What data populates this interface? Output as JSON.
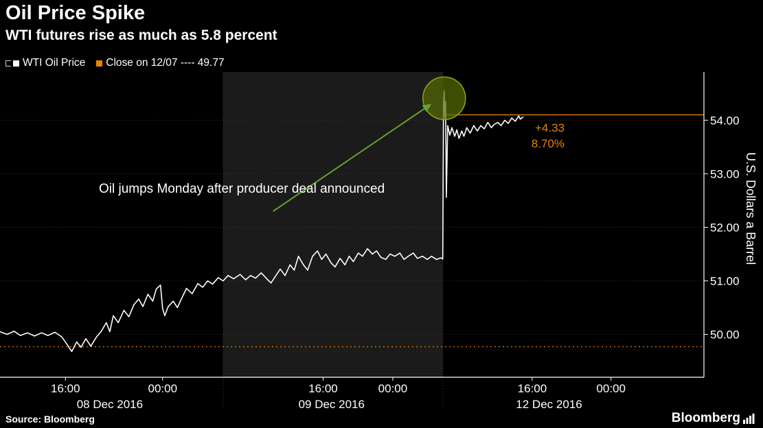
{
  "header": {
    "title": "Oil Price Spike",
    "subtitle": "WTI futures rise as much as 5.8 percent"
  },
  "legend": {
    "series1_label": "WTI Oil Price",
    "series2_label": "Close on 12/07 ---- 49.77"
  },
  "annotation": {
    "text": "Oil jumps Monday after producer deal announced",
    "change_abs": "+4.33",
    "change_pct": "8.70%"
  },
  "footer": {
    "source": "Source: Bloomberg",
    "logo_text": "Bloomberg"
  },
  "colors": {
    "background": "#000000",
    "line": "#ffffff",
    "orange": "#e8820a",
    "green": "#67a22f",
    "grid": "#3a3a3a",
    "band": "#1b1b1b",
    "circle_fill": "#566b04",
    "circle_stroke": "#90a911"
  },
  "chart_data": {
    "type": "line",
    "title": "Oil Price Spike",
    "subtitle": "WTI futures rise as much as 5.8 percent",
    "ylabel": "U.S. Dollars a Barrel",
    "ylim": [
      49.2,
      54.9
    ],
    "yticks": [
      50,
      51,
      52,
      53,
      54
    ],
    "close_on_12_07": 49.77,
    "session_high": 54.1,
    "change_abs": 4.33,
    "change_pct": 8.7,
    "legend_position": "top-left",
    "grid": true,
    "xticks": [
      {
        "x": 0.093,
        "label": "16:00"
      },
      {
        "x": 0.231,
        "label": "00:00"
      },
      {
        "x": 0.459,
        "label": "16:00"
      },
      {
        "x": 0.558,
        "label": "00:00"
      },
      {
        "x": 0.756,
        "label": "16:00"
      },
      {
        "x": 0.868,
        "label": "00:00"
      }
    ],
    "day_labels": [
      {
        "x": 0.156,
        "label": "08 Dec 2016"
      },
      {
        "x": 0.471,
        "label": "09 Dec 2016"
      },
      {
        "x": 0.78,
        "label": "12 Dec 2016"
      }
    ],
    "shaded_band": [
      0.317,
      0.629
    ],
    "highlight_circle": {
      "x": 0.631,
      "price": 54.41,
      "r": 31
    },
    "annotation_arrow": {
      "from": [
        0.388,
        52.3
      ],
      "to": [
        0.609,
        54.27
      ]
    },
    "series": [
      {
        "name": "WTI Oil Price",
        "color": "#ffffff",
        "points": [
          [
            0.0,
            50.05
          ],
          [
            0.01,
            50.0
          ],
          [
            0.02,
            50.06
          ],
          [
            0.029,
            49.98
          ],
          [
            0.039,
            50.03
          ],
          [
            0.049,
            49.97
          ],
          [
            0.059,
            50.03
          ],
          [
            0.068,
            49.98
          ],
          [
            0.078,
            50.04
          ],
          [
            0.088,
            49.95
          ],
          [
            0.096,
            49.8
          ],
          [
            0.102,
            49.68
          ],
          [
            0.109,
            49.86
          ],
          [
            0.115,
            49.76
          ],
          [
            0.122,
            49.92
          ],
          [
            0.129,
            49.78
          ],
          [
            0.137,
            49.95
          ],
          [
            0.144,
            50.06
          ],
          [
            0.151,
            50.22
          ],
          [
            0.156,
            50.05
          ],
          [
            0.161,
            50.35
          ],
          [
            0.168,
            50.22
          ],
          [
            0.176,
            50.45
          ],
          [
            0.183,
            50.33
          ],
          [
            0.19,
            50.55
          ],
          [
            0.197,
            50.66
          ],
          [
            0.203,
            50.52
          ],
          [
            0.21,
            50.75
          ],
          [
            0.217,
            50.62
          ],
          [
            0.222,
            50.85
          ],
          [
            0.228,
            50.92
          ],
          [
            0.231,
            50.48
          ],
          [
            0.234,
            50.35
          ],
          [
            0.239,
            50.52
          ],
          [
            0.246,
            50.62
          ],
          [
            0.252,
            50.5
          ],
          [
            0.259,
            50.7
          ],
          [
            0.265,
            50.86
          ],
          [
            0.273,
            50.76
          ],
          [
            0.281,
            50.95
          ],
          [
            0.288,
            50.88
          ],
          [
            0.295,
            51.0
          ],
          [
            0.302,
            50.94
          ],
          [
            0.31,
            51.06
          ],
          [
            0.317,
            51.0
          ],
          [
            0.324,
            51.1
          ],
          [
            0.332,
            51.04
          ],
          [
            0.341,
            51.12
          ],
          [
            0.349,
            51.02
          ],
          [
            0.356,
            51.1
          ],
          [
            0.363,
            51.05
          ],
          [
            0.371,
            51.15
          ],
          [
            0.379,
            51.04
          ],
          [
            0.385,
            50.96
          ],
          [
            0.392,
            51.1
          ],
          [
            0.398,
            51.22
          ],
          [
            0.405,
            51.1
          ],
          [
            0.412,
            51.3
          ],
          [
            0.418,
            51.2
          ],
          [
            0.424,
            51.46
          ],
          [
            0.431,
            51.3
          ],
          [
            0.437,
            51.2
          ],
          [
            0.444,
            51.46
          ],
          [
            0.451,
            51.56
          ],
          [
            0.457,
            51.4
          ],
          [
            0.463,
            51.5
          ],
          [
            0.47,
            51.34
          ],
          [
            0.476,
            51.26
          ],
          [
            0.483,
            51.42
          ],
          [
            0.49,
            51.3
          ],
          [
            0.496,
            51.46
          ],
          [
            0.502,
            51.36
          ],
          [
            0.509,
            51.52
          ],
          [
            0.515,
            51.46
          ],
          [
            0.522,
            51.6
          ],
          [
            0.529,
            51.5
          ],
          [
            0.535,
            51.56
          ],
          [
            0.541,
            51.44
          ],
          [
            0.548,
            51.4
          ],
          [
            0.554,
            51.5
          ],
          [
            0.561,
            51.46
          ],
          [
            0.568,
            51.52
          ],
          [
            0.574,
            51.4
          ],
          [
            0.58,
            51.46
          ],
          [
            0.587,
            51.52
          ],
          [
            0.593,
            51.42
          ],
          [
            0.6,
            51.46
          ],
          [
            0.607,
            51.4
          ],
          [
            0.613,
            51.46
          ],
          [
            0.62,
            51.4
          ],
          [
            0.626,
            51.43
          ],
          [
            0.629,
            51.41
          ],
          [
            0.63,
            54.3
          ],
          [
            0.631,
            54.55
          ],
          [
            0.632,
            54.05
          ],
          [
            0.633,
            54.35
          ],
          [
            0.634,
            52.56
          ],
          [
            0.636,
            53.9
          ],
          [
            0.639,
            53.72
          ],
          [
            0.642,
            53.86
          ],
          [
            0.646,
            53.7
          ],
          [
            0.649,
            53.82
          ],
          [
            0.652,
            53.66
          ],
          [
            0.656,
            53.8
          ],
          [
            0.659,
            53.7
          ],
          [
            0.663,
            53.86
          ],
          [
            0.668,
            53.76
          ],
          [
            0.673,
            53.9
          ],
          [
            0.678,
            53.8
          ],
          [
            0.683,
            53.9
          ],
          [
            0.688,
            53.84
          ],
          [
            0.693,
            53.96
          ],
          [
            0.698,
            53.86
          ],
          [
            0.702,
            53.92
          ],
          [
            0.707,
            53.96
          ],
          [
            0.712,
            53.9
          ],
          [
            0.717,
            54.0
          ],
          [
            0.722,
            53.94
          ],
          [
            0.727,
            54.04
          ],
          [
            0.732,
            53.98
          ],
          [
            0.737,
            54.08
          ],
          [
            0.739,
            54.02
          ],
          [
            0.743,
            54.06
          ]
        ]
      }
    ]
  }
}
